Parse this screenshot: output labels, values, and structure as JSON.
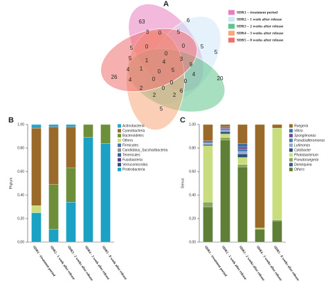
{
  "chart_data": [
    {
      "type": "venn",
      "title": "A",
      "sets": [
        {
          "name": "SDR1 – treatment period",
          "color": "#e77fbf"
        },
        {
          "name": "SDR2 – 1 week after release",
          "color": "#cfe6f7"
        },
        {
          "name": "SDR3 – 2 weeks after release",
          "color": "#5ec48d"
        },
        {
          "name": "SDR4 – 3 weeks after release",
          "color": "#f5a878"
        },
        {
          "name": "SDR5 – 8 weeks after release",
          "color": "#ef6f6f"
        }
      ],
      "regions": [
        63,
        6,
        3,
        0,
        5,
        5,
        0,
        0,
        5,
        5,
        0,
        1,
        4,
        3,
        9,
        5,
        4,
        1,
        5,
        4,
        4,
        2,
        26,
        20,
        0,
        0,
        2,
        0,
        2,
        6,
        0,
        0,
        5
      ]
    },
    {
      "type": "stacked_bar",
      "title": "B",
      "ylabel": "Phylum",
      "categories": [
        "SDR1 - treatment period",
        "SDR2 - 1 week after release",
        "SDR3 - 2 weeks after release",
        "SDR4 - 3 week after release",
        "SDR5 - 8 week after release"
      ],
      "ylim": [
        0,
        1
      ],
      "yticks": [
        {
          "value": 0,
          "label": "0.00"
        },
        {
          "value": 0.2,
          "label": "0.20"
        },
        {
          "value": 0.4,
          "label": "0.40"
        },
        {
          "value": 0.6,
          "label": "0.60"
        },
        {
          "value": 0.8,
          "label": "0.80"
        },
        {
          "value": 1,
          "label": "1.00"
        }
      ],
      "legend_italic": false,
      "series": [
        {
          "name": "Actinobacteria",
          "color": "#29a3c9",
          "values": [
            0.03,
            0.02,
            0.02,
            0,
            0
          ]
        },
        {
          "name": "Cyanobacteria",
          "color": "#9a6a2b",
          "values": [
            0.66,
            0.49,
            0.35,
            0,
            0
          ]
        },
        {
          "name": "Bacteroidetes",
          "color": "#6d8f3a",
          "values": [
            0,
            0.38,
            0.29,
            0.11,
            0.16
          ]
        },
        {
          "name": "Others",
          "color": "#c9dd7f",
          "values": [
            0.06,
            0,
            0,
            0,
            0
          ]
        },
        {
          "name": "Firmicutes",
          "color": "#4a6fa5",
          "values": [
            0,
            0,
            0,
            0,
            0
          ]
        },
        {
          "name": "Candidatus_Saccharibacteria",
          "color": "#8e8e8e",
          "values": [
            0,
            0,
            0,
            0,
            0
          ]
        },
        {
          "name": "Tenericutes",
          "color": "#3b5a8a",
          "values": [
            0,
            0,
            0,
            0,
            0
          ]
        },
        {
          "name": "Fusobacteria",
          "color": "#5b3f8c",
          "values": [
            0,
            0,
            0,
            0,
            0
          ]
        },
        {
          "name": "Verrucomicrobia",
          "color": "#2d4d7a",
          "values": [
            0,
            0,
            0,
            0,
            0
          ]
        },
        {
          "name": "Proteobacteria",
          "color": "#1ba1c3",
          "values": [
            0.25,
            0.11,
            0.34,
            0.89,
            0.84
          ]
        }
      ]
    },
    {
      "type": "stacked_bar",
      "title": "C",
      "ylabel": "Genus",
      "categories": [
        "SDR1 - treatment period",
        "SDR2 - 1 week after release",
        "SDR3 - 2 weeks after release",
        "SDR4 - 3 weeks after release",
        "SDR5 - 8 weeks after release"
      ],
      "ylim": [
        0,
        1
      ],
      "yticks": [
        {
          "value": 0,
          "label": "0.00"
        },
        {
          "value": 0.2,
          "label": "0.20"
        },
        {
          "value": 0.4,
          "label": "0.40"
        },
        {
          "value": 0.6,
          "label": "0.60"
        },
        {
          "value": 0.8,
          "label": "0.80"
        },
        {
          "value": 1,
          "label": "1.00"
        }
      ],
      "legend_italic": true,
      "series": [
        {
          "name": "Ruegeria",
          "color": "#9a6a2b",
          "values": [
            0.14,
            0.02,
            0.16,
            0.88,
            0.03
          ]
        },
        {
          "name": "Vibrio",
          "color": "#3c6e9e",
          "values": [
            0,
            0.01,
            0.03,
            0,
            0
          ]
        },
        {
          "name": "Spongiimonas",
          "color": "#6a4a8c",
          "values": [
            0.01,
            0.01,
            0.02,
            0,
            0
          ]
        },
        {
          "name": "Pseudoalteromonas",
          "color": "#4a78b8",
          "values": [
            0.01,
            0.01,
            0.02,
            0,
            0
          ]
        },
        {
          "name": "Lutimonas",
          "color": "#8fa7c9",
          "values": [
            0.01,
            0.01,
            0.02,
            0,
            0
          ]
        },
        {
          "name": "Cytobacter",
          "color": "#2e4f7a",
          "values": [
            0.01,
            0.02,
            0.03,
            0,
            0
          ]
        },
        {
          "name": "Photobacterium",
          "color": "#c9dd7f",
          "values": [
            0.48,
            0.03,
            0.06,
            0.01,
            0.78
          ]
        },
        {
          "name": "Pseudoruegeria",
          "color": "#8aa85a",
          "values": [
            0.04,
            0.02,
            0.02,
            0,
            0.01
          ]
        },
        {
          "name": "Demequina",
          "color": "#3a5a8a",
          "values": [
            0,
            0,
            0,
            0,
            0
          ]
        },
        {
          "name": "Others",
          "color": "#5f7f36",
          "values": [
            0.3,
            0.87,
            0.64,
            0.11,
            0.18
          ]
        }
      ]
    }
  ]
}
